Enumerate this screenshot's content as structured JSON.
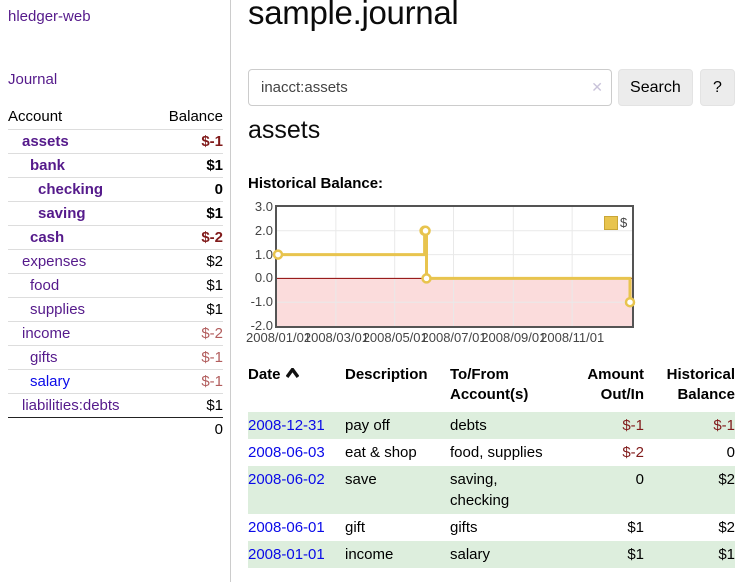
{
  "app": {
    "brand": "hledger-web"
  },
  "sidebar": {
    "journal_link": "Journal",
    "account_header": "Account",
    "balance_header": "Balance",
    "accounts": [
      {
        "name": "assets",
        "balance": "$-1"
      },
      {
        "name": "bank",
        "balance": "$1"
      },
      {
        "name": "checking",
        "balance": "0"
      },
      {
        "name": "saving",
        "balance": "$1"
      },
      {
        "name": "cash",
        "balance": "$-2"
      },
      {
        "name": "expenses",
        "balance": "$2"
      },
      {
        "name": "food",
        "balance": "$1"
      },
      {
        "name": "supplies",
        "balance": "$1"
      },
      {
        "name": "income",
        "balance": "$-2"
      },
      {
        "name": "gifts",
        "balance": "$-1"
      },
      {
        "name": "salary",
        "balance": "$-1"
      },
      {
        "name": "liabilities:debts",
        "balance": "$1"
      }
    ],
    "total": "0"
  },
  "main": {
    "title": "sample.journal",
    "search": {
      "value": "inacct:assets",
      "clear_icon": "✕",
      "button_label": "Search",
      "help_label": "?"
    },
    "account_heading": "assets",
    "chart_label": "Historical Balance:"
  },
  "chart_data": {
    "type": "line",
    "title": "Historical Balance",
    "step": true,
    "series": [
      {
        "name": "$",
        "points": [
          [
            "2008-01-01",
            1
          ],
          [
            "2008-06-01",
            2
          ],
          [
            "2008-06-02",
            2
          ],
          [
            "2008-06-03",
            0
          ],
          [
            "2008-12-31",
            -1
          ]
        ]
      }
    ],
    "ylim": [
      -2,
      3
    ],
    "yticks": [
      {
        "v": 3,
        "label": "3.0"
      },
      {
        "v": 2,
        "label": "2.0"
      },
      {
        "v": 1,
        "label": "1.0"
      },
      {
        "v": 0,
        "label": "0.0"
      },
      {
        "v": -1,
        "label": "-1.0"
      },
      {
        "v": -2,
        "label": "-2.0"
      }
    ],
    "xticks": [
      "2008/01/01",
      "2008/03/01",
      "2008/05/01",
      "2008/07/01",
      "2008/09/01",
      "2008/11/01"
    ],
    "xrange": [
      "2008-01-01",
      "2008-12-31"
    ],
    "legend": {
      "label": "$",
      "position": "top-right"
    },
    "grid": true,
    "colors": {
      "line": "#e8c44e",
      "marker_fill": "#ffffff",
      "negative_region": "#fbdcdc",
      "zero_line": "#8b0000",
      "grid": "#e9e9e9"
    }
  },
  "register": {
    "headers": {
      "date": "Date",
      "description": "Description",
      "accounts": "To/From Account(s)",
      "amount": "Amount Out/In",
      "balance": "Historical Balance"
    },
    "rows": [
      {
        "date": "2008-12-31",
        "description": "pay off",
        "accounts": "debts",
        "amount": "$-1",
        "balance": "$-1"
      },
      {
        "date": "2008-06-03",
        "description": "eat & shop",
        "accounts": "food, supplies",
        "amount": "$-2",
        "balance": "0"
      },
      {
        "date": "2008-06-02",
        "description": "save",
        "accounts": "saving, checking",
        "amount": "0",
        "balance": "$2"
      },
      {
        "date": "2008-06-01",
        "description": "gift",
        "accounts": "gifts",
        "amount": "$1",
        "balance": "$2"
      },
      {
        "date": "2008-01-01",
        "description": "income",
        "accounts": "salary",
        "amount": "$1",
        "balance": "$1"
      }
    ]
  }
}
